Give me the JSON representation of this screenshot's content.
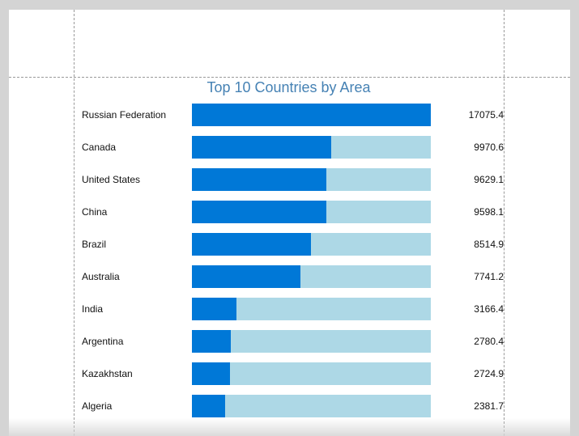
{
  "report": {
    "title": "Top 10 Countries by Area"
  },
  "colors": {
    "bar_fill": "#0078d7",
    "bar_track": "#add8e6",
    "title": "#4682b4"
  },
  "chart_data": {
    "type": "bar",
    "orientation": "horizontal",
    "title": "Top 10 Countries by Area",
    "categories": [
      "Russian Federation",
      "Canada",
      "United States",
      "China",
      "Brazil",
      "Australia",
      "India",
      "Argentina",
      "Kazakhstan",
      "Algeria"
    ],
    "values": [
      "17075.4",
      "9970.6",
      "9629.1",
      "9598.1",
      "8514.9",
      "7741.2",
      "3166.4",
      "2780.4",
      "2724.9",
      "2381.7"
    ],
    "xlim": [
      0,
      17075.4
    ],
    "grid": false,
    "legend": "none"
  }
}
